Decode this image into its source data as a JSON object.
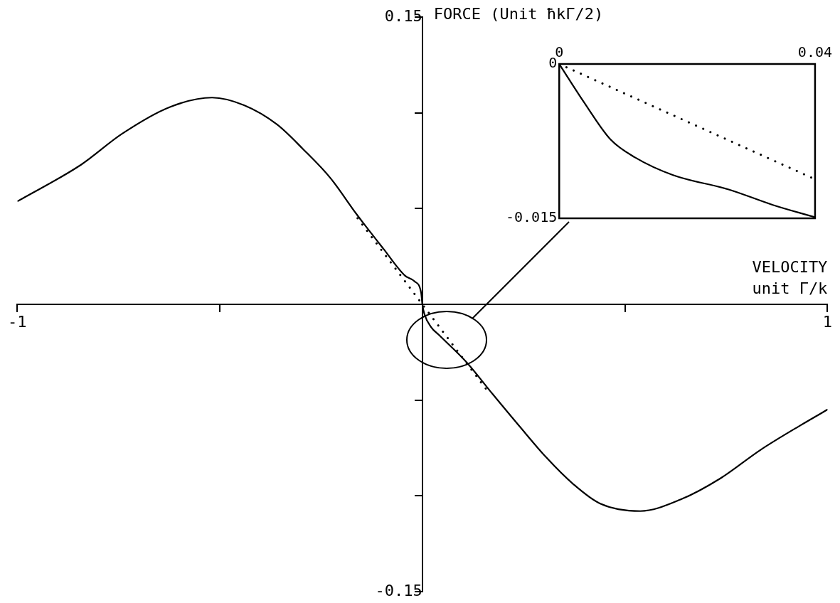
{
  "chart_data": [
    {
      "type": "line",
      "xlabel": "VELOCITY\nunit Γ/k",
      "ylabel": "FORCE (Unit ħkΓ/2)",
      "xlim": [
        -1,
        1
      ],
      "ylim": [
        -0.15,
        0.15
      ],
      "xticks": [
        -1,
        {
          "value": -0.5,
          "label": null
        },
        {
          "value": 0.5,
          "label": null
        },
        1
      ],
      "yticks": [
        -0.15,
        {
          "value": -0.1,
          "label": null
        },
        {
          "value": -0.05,
          "label": null
        },
        {
          "value": 0.05,
          "label": null
        },
        {
          "value": 0.1,
          "label": null
        },
        0.15
      ],
      "series": [
        {
          "color": "#000000",
          "line_style": "solid",
          "x": [
            -0.998,
            -0.842,
            -0.742,
            -0.624,
            -0.519,
            -0.44,
            -0.359,
            -0.294,
            -0.227,
            -0.162,
            -0.096,
            -0.043,
            -0.019,
            -0.003,
            0,
            0.005,
            0.022,
            0.041,
            0.108,
            0.174,
            0.241,
            0.306,
            0.373,
            0.438,
            0.538,
            0.637,
            0.735,
            0.835,
            0.935,
            1.0
          ],
          "values": [
            0.054,
            0.073,
            0.089,
            0.103,
            0.108,
            0.104,
            0.094,
            0.081,
            0.066,
            0.047,
            0.029,
            0.015,
            0.012,
            0.006,
            0,
            -0.005,
            -0.012,
            -0.016,
            -0.03,
            -0.047,
            -0.064,
            -0.08,
            -0.094,
            -0.104,
            -0.108,
            -0.102,
            -0.091,
            -0.076,
            -0.063,
            -0.055
          ]
        },
        {
          "color": "#000000",
          "line_style": "dotted",
          "x": [
            -0.16,
            0.16
          ],
          "values": [
            0.045,
            -0.045
          ]
        }
      ]
    },
    {
      "type": "line",
      "xlim": [
        0,
        0.04
      ],
      "ylim": [
        -0.015,
        0
      ],
      "xticks": [
        0,
        0.04
      ],
      "yticks": [
        -0.015,
        0
      ],
      "series": [
        {
          "color": "#000000",
          "line_style": "solid",
          "x": [
            0,
            0.00386,
            0.00804,
            0.0119,
            0.0178,
            0.0265,
            0.0334,
            0.04
          ],
          "values": [
            0,
            -0.0037,
            -0.00735,
            -0.0091,
            -0.0108,
            -0.0122,
            -0.0137,
            -0.0149
          ]
        },
        {
          "color": "#000000",
          "line_style": "dotted",
          "x": [
            0,
            0.04
          ],
          "values": [
            0,
            -0.0112
          ]
        }
      ]
    }
  ]
}
